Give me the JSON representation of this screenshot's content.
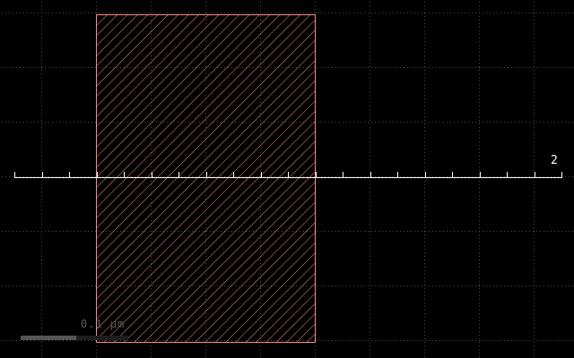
{
  "viewer": {
    "background_color": "#000000",
    "grid_color": "#4a4a4a",
    "ruler_color": "#ffffff",
    "shape_color": "#ff8a8a"
  },
  "ruler": {
    "end_label": "2"
  },
  "scale_bar": {
    "label": "0.1 µm",
    "color": "#555555"
  },
  "icons": {
    "shape": "hatched-rectangle",
    "ruler": "measurement-ruler"
  }
}
